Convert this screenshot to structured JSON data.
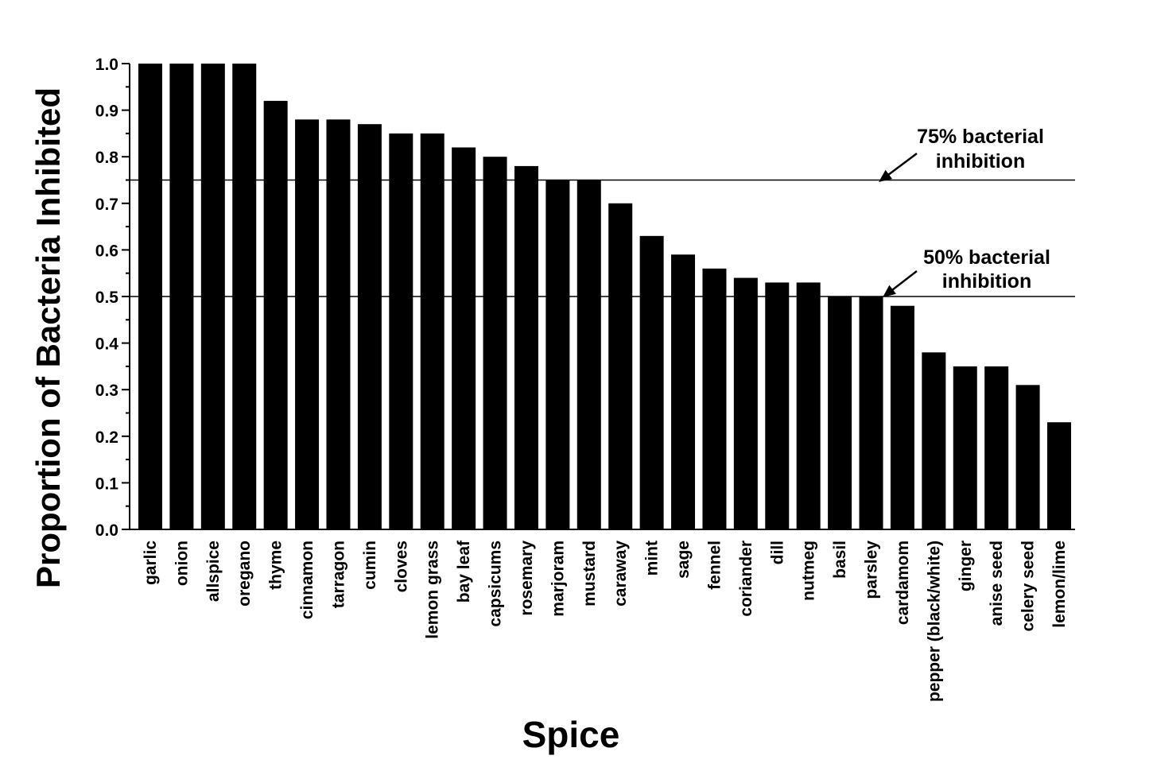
{
  "chart_data": {
    "type": "bar",
    "xlabel": "Spice",
    "ylabel": "Proportion of Bacteria Inhibited",
    "ylim": [
      0,
      1.0
    ],
    "yticks": [
      "0.0",
      "0.1",
      "0.2",
      "0.3",
      "0.4",
      "0.5",
      "0.6",
      "0.7",
      "0.8",
      "0.9",
      "1.0"
    ],
    "grid": false,
    "bar_color": "#000000",
    "categories": [
      "garlic",
      "onion",
      "allspice",
      "oregano",
      "thyme",
      "cinnamon",
      "tarragon",
      "cumin",
      "cloves",
      "lemon grass",
      "bay leaf",
      "capsicums",
      "rosemary",
      "marjoram",
      "mustard",
      "caraway",
      "mint",
      "sage",
      "fennel",
      "coriander",
      "dill",
      "nutmeg",
      "basil",
      "parsley",
      "cardamom",
      "pepper (black/white)",
      "ginger",
      "anise seed",
      "celery seed",
      "lemon/lime"
    ],
    "values": [
      1.0,
      1.0,
      1.0,
      1.0,
      0.92,
      0.88,
      0.88,
      0.87,
      0.85,
      0.85,
      0.82,
      0.8,
      0.78,
      0.75,
      0.75,
      0.7,
      0.63,
      0.59,
      0.56,
      0.54,
      0.53,
      0.53,
      0.5,
      0.5,
      0.48,
      0.38,
      0.35,
      0.35,
      0.31,
      0.23
    ],
    "reference_lines": [
      {
        "value": 0.75,
        "label_line1": "75%  bacterial",
        "label_line2": "inhibition"
      },
      {
        "value": 0.5,
        "label_line1": "50%  bacterial",
        "label_line2": "inhibition"
      }
    ]
  }
}
